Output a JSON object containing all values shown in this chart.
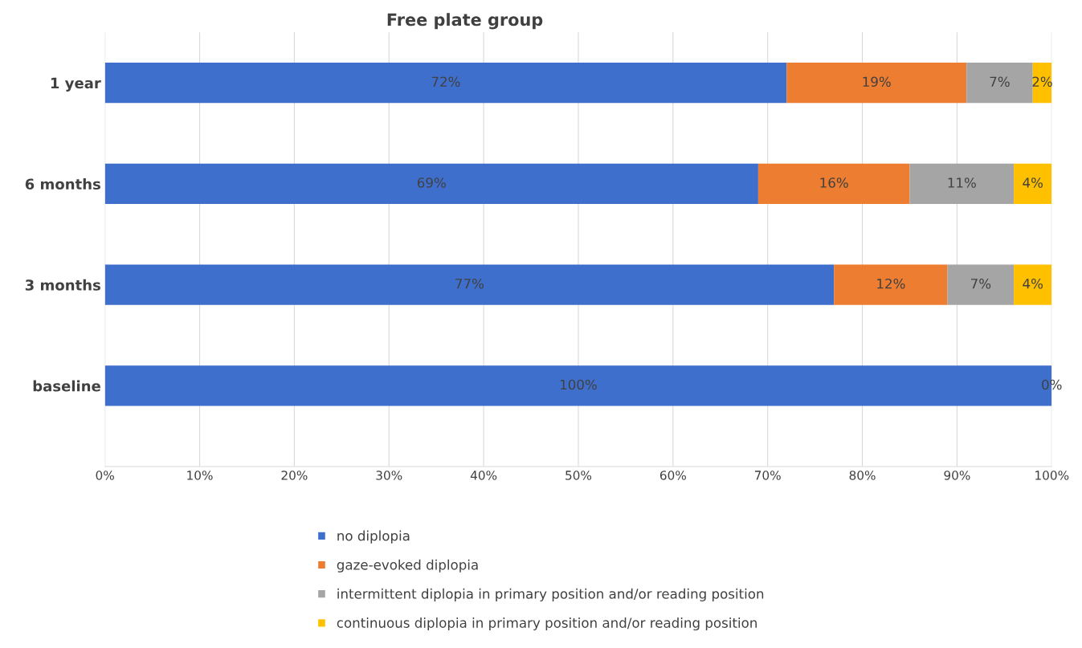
{
  "chart_data": {
    "type": "bar",
    "orientation": "horizontal",
    "stacked": true,
    "title": "Free plate group",
    "categories": [
      "1 year",
      "6 months",
      "3 months",
      "baseline"
    ],
    "series": [
      {
        "name": "no diplopia",
        "color": "#3f6fcc",
        "values": [
          72,
          69,
          77,
          100
        ],
        "value_labels": [
          "72%",
          "69%",
          "77%",
          "100%"
        ]
      },
      {
        "name": "gaze-evoked diplopia",
        "color": "#ed7d31",
        "values": [
          19,
          16,
          12,
          0
        ],
        "value_labels": [
          "19%",
          "16%",
          "12%",
          null
        ]
      },
      {
        "name": "intermittent diplopia in primary position and/or reading position",
        "color": "#a5a5a5",
        "values": [
          7,
          11,
          7,
          0
        ],
        "value_labels": [
          "7%",
          "11%",
          "7%",
          null
        ]
      },
      {
        "name": "continuous diplopia in primary position and/or reading position",
        "color": "#ffc000",
        "values": [
          2,
          4,
          4,
          0
        ],
        "value_labels": [
          "2%",
          "4%",
          "4%",
          "0%"
        ]
      }
    ],
    "xlim": [
      0,
      100
    ],
    "xticks": [
      {
        "value": 0,
        "label": "0%"
      },
      {
        "value": 10,
        "label": "10%"
      },
      {
        "value": 20,
        "label": "20%"
      },
      {
        "value": 30,
        "label": "30%"
      },
      {
        "value": 40,
        "label": "40%"
      },
      {
        "value": 50,
        "label": "50%"
      },
      {
        "value": 60,
        "label": "60%"
      },
      {
        "value": 70,
        "label": "70%"
      },
      {
        "value": 80,
        "label": "80%"
      },
      {
        "value": 90,
        "label": "90%"
      },
      {
        "value": 100,
        "label": "100%"
      }
    ],
    "grid": "x",
    "legend": "bottom"
  }
}
